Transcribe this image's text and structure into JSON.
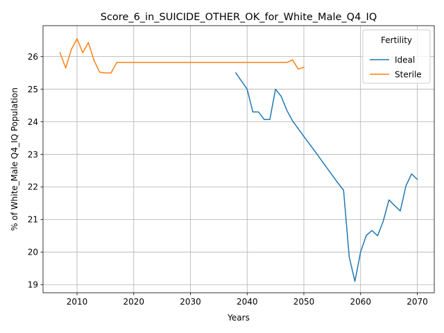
{
  "chart_data": {
    "type": "line",
    "title": "Score_6_in_SUICIDE_OTHER_OK_for_White_Male_Q4_IQ",
    "xlabel": "Years",
    "ylabel": "% of White_Male Q4_IQ Population",
    "xlim": [
      2004,
      2073
    ],
    "ylim": [
      18.75,
      26.95
    ],
    "xticks": [
      2010,
      2020,
      2030,
      2040,
      2050,
      2060,
      2070
    ],
    "yticks": [
      19,
      20,
      21,
      22,
      23,
      24,
      25,
      26
    ],
    "grid": true,
    "legend": {
      "title": "Fertility",
      "placement": "top-right"
    },
    "series": [
      {
        "name": "Ideal",
        "color": "#1f77b4",
        "x": [
          2038,
          2040,
          2041,
          2042,
          2043,
          2044,
          2045,
          2046,
          2047,
          2048,
          2050,
          2052,
          2054,
          2056,
          2057,
          2058,
          2059,
          2060,
          2061,
          2062,
          2063,
          2064,
          2065,
          2066,
          2067,
          2068,
          2069,
          2070
        ],
        "y": [
          25.5,
          25.0,
          24.3,
          24.3,
          24.07,
          24.07,
          25.0,
          24.78,
          24.35,
          24.03,
          23.55,
          23.08,
          22.6,
          22.12,
          21.9,
          19.85,
          19.1,
          20.0,
          20.51,
          20.66,
          20.5,
          20.95,
          21.6,
          21.43,
          21.26,
          22.03,
          22.4,
          22.23
        ]
      },
      {
        "name": "Sterile",
        "color": "#ff7f0e",
        "x": [
          2007,
          2008,
          2009,
          2010,
          2011,
          2012,
          2013,
          2014,
          2015,
          2016,
          2017,
          2020,
          2025,
          2030,
          2035,
          2040,
          2045,
          2047,
          2048,
          2049,
          2050
        ],
        "y": [
          26.12,
          25.65,
          26.22,
          26.55,
          26.12,
          26.43,
          25.88,
          25.52,
          25.5,
          25.5,
          25.82,
          25.82,
          25.82,
          25.82,
          25.82,
          25.82,
          25.82,
          25.82,
          25.9,
          25.62,
          25.67
        ]
      }
    ]
  }
}
